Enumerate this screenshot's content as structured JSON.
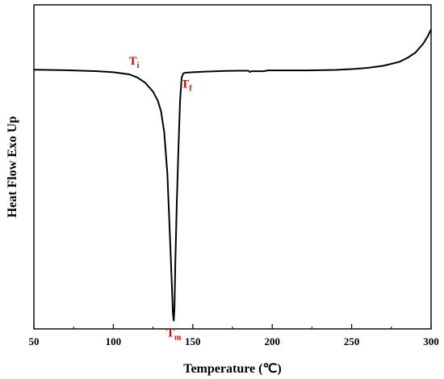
{
  "chart_data": {
    "type": "line",
    "title": "",
    "xlabel": "Temperature (℃)",
    "ylabel": "Heat Flow Exo Up",
    "xlim": [
      50,
      300
    ],
    "ylim": [
      -1.0,
      0.25
    ],
    "x_ticks": [
      "50",
      "100",
      "150",
      "200",
      "250",
      "300"
    ],
    "y_ticks_shown": false,
    "grid": false,
    "series": [
      {
        "x": [
          50,
          70,
          90,
          100,
          110,
          115,
          120,
          125,
          128,
          130,
          132,
          134,
          135,
          136,
          137,
          137.5,
          138,
          138.5,
          139,
          140,
          141,
          142,
          143,
          144,
          145,
          150,
          160,
          170,
          180,
          185,
          186,
          187,
          195,
          197,
          200,
          220,
          240,
          250,
          260,
          270,
          280,
          285,
          290,
          295,
          298,
          300
        ],
        "y": [
          0.0,
          -0.002,
          -0.006,
          -0.01,
          -0.018,
          -0.03,
          -0.05,
          -0.085,
          -0.12,
          -0.16,
          -0.24,
          -0.4,
          -0.55,
          -0.7,
          -0.86,
          -0.94,
          -0.97,
          -0.92,
          -0.75,
          -0.5,
          -0.3,
          -0.12,
          -0.03,
          -0.015,
          -0.012,
          -0.01,
          -0.007,
          -0.005,
          -0.004,
          -0.004,
          -0.009,
          -0.006,
          -0.006,
          -0.003,
          -0.003,
          -0.003,
          -0.001,
          0.002,
          0.007,
          0.015,
          0.03,
          0.045,
          0.065,
          0.1,
          0.13,
          0.155
        ],
        "color": "#000000"
      }
    ],
    "annotations": [
      {
        "text": "T",
        "sub": "i",
        "x": 113,
        "y": 0.02,
        "color": "#e60000"
      },
      {
        "text": "T",
        "sub": "f",
        "x": 146,
        "y": -0.07,
        "color": "#e60000"
      },
      {
        "text": "T",
        "sub": "m",
        "x": 138,
        "y": -1.03,
        "color": "#e60000"
      }
    ]
  }
}
